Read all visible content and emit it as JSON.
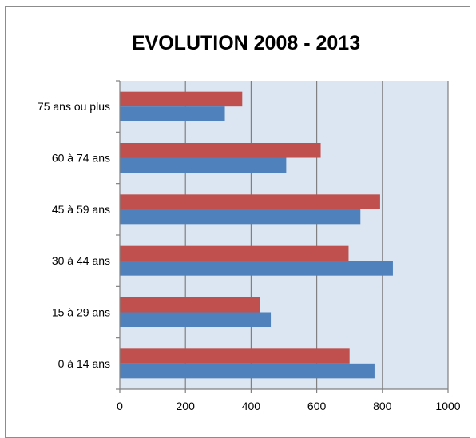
{
  "chart_data": {
    "type": "bar",
    "orientation": "horizontal",
    "title": "EVOLUTION 2008 - 2013",
    "categories": [
      "75 ans ou plus",
      "60 à 74 ans",
      "45 à 59 ans",
      "30 à 44 ans",
      "15 à 29 ans",
      "0 à 14 ans"
    ],
    "series": [
      {
        "color": "#c0504d",
        "values": [
          373,
          612,
          793,
          697,
          428,
          700
        ]
      },
      {
        "color": "#4f81bd",
        "values": [
          320,
          507,
          733,
          832,
          460,
          776
        ]
      }
    ],
    "xlim": [
      0,
      1000
    ],
    "xticks": [
      0,
      200,
      400,
      600,
      800,
      1000
    ],
    "xlabel": "",
    "ylabel": "",
    "grid": true,
    "legend": "none",
    "plot_background": "#dce6f2"
  }
}
